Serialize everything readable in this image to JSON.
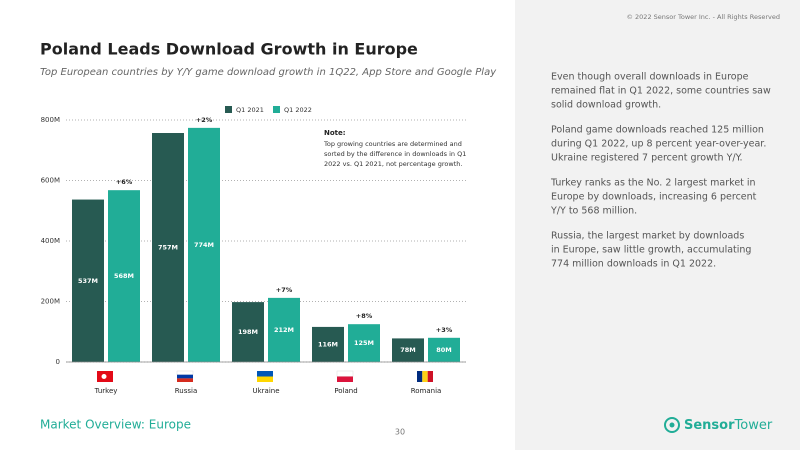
{
  "chart_data": {
    "type": "bar",
    "title": "Poland Leads Download Growth in Europe",
    "subtitle": "Top European countries by Y/Y game download growth in 1Q22, App Store and Google Play",
    "categories": [
      "Turkey",
      "Russia",
      "Ukraine",
      "Poland",
      "Romania"
    ],
    "series": [
      {
        "name": "Q1 2021",
        "color": "#275a52",
        "values": [
          537,
          757,
          198,
          116,
          78
        ],
        "value_labels": [
          "537M",
          "757M",
          "198M",
          "116M",
          "78M"
        ]
      },
      {
        "name": "Q1 2022",
        "color": "#21ad97",
        "values": [
          568,
          774,
          212,
          125,
          80
        ],
        "value_labels": [
          "568M",
          "774M",
          "212M",
          "125M",
          "80M"
        ]
      }
    ],
    "growth_labels": [
      "+6%",
      "+2%",
      "+7%",
      "+8%",
      "+3%"
    ],
    "ylim": [
      0,
      800
    ],
    "yticks": [
      0,
      {
        "value": 200,
        "label": "200M"
      },
      {
        "value": 400,
        "label": "400M"
      },
      {
        "value": 600,
        "label": "600M"
      },
      {
        "value": 800,
        "label": "800M"
      }
    ],
    "grid": true,
    "note": {
      "heading": "Note:",
      "lines": [
        "Top growing countries are determined and",
        "sorted by the difference in downloads in Q1",
        "2022 vs. Q1 2021, not percentage growth."
      ]
    }
  },
  "copyright": "© 2022 Sensor Tower Inc. - All Rights Reserved",
  "paragraphs": [
    [
      "Even though overall downloads in Europe",
      "remained flat in Q1 2022, some countries saw",
      "solid download growth."
    ],
    [
      "Poland game downloads reached 125 million",
      "during Q1 2022, up 8 percent year-over-year.",
      "Ukraine registered 7 percent growth Y/Y."
    ],
    [
      "Turkey ranks as the No. 2 largest market in",
      "Europe by downloads, increasing 6 percent",
      "Y/Y to 568 million."
    ],
    [
      "Russia, the largest market by downloads",
      "in Europe, saw little growth, accumulating",
      "774 million downloads in Q1 2022."
    ]
  ],
  "footer": "Market Overview: Europe",
  "page_number": "30",
  "logo": {
    "part1": "Sensor",
    "part2": "Tower"
  }
}
